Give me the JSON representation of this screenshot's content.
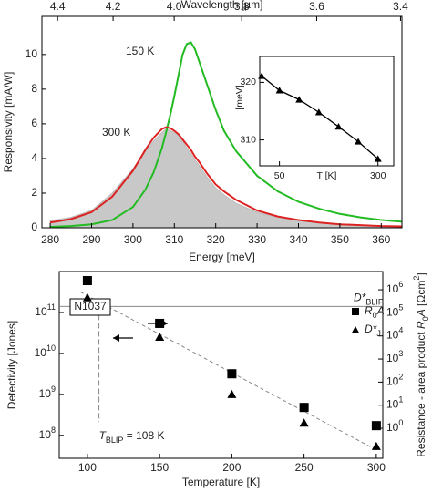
{
  "chart_data": [
    {
      "type": "line",
      "xlabel": "Energy [meV]",
      "ylabel": "Responsivity [mA/W]",
      "x2label": "Wavelength [µm]",
      "x": [
        280,
        285,
        290,
        295,
        300,
        303,
        305,
        307,
        308,
        309,
        310,
        311,
        312,
        313,
        314,
        315,
        316,
        318,
        320,
        322,
        325,
        330,
        335,
        340,
        345,
        350,
        355,
        360,
        365
      ],
      "series": [
        {
          "color": "#c8c8c8",
          "fill": true,
          "values": [
            0.4,
            0.6,
            1.0,
            2.0,
            3.4,
            4.4,
            5.0,
            5.5,
            5.7,
            5.6,
            5.5,
            5.3,
            5.0,
            4.6,
            4.3,
            3.9,
            3.6,
            2.9,
            2.3,
            1.9,
            1.4,
            0.9,
            0.6,
            0.4,
            0.3,
            0.2,
            0.15,
            0.1,
            0.1
          ]
        },
        {
          "name": "150 K",
          "color": "#22bb22",
          "values": [
            0.05,
            0.1,
            0.2,
            0.45,
            1.2,
            2.2,
            3.2,
            4.6,
            5.5,
            6.5,
            7.6,
            8.8,
            10.0,
            10.6,
            10.7,
            10.3,
            9.6,
            8.2,
            6.8,
            5.6,
            4.4,
            3.0,
            2.1,
            1.5,
            1.1,
            0.8,
            0.6,
            0.45,
            0.35
          ]
        },
        {
          "name": "300 K",
          "color": "#dd2222",
          "values": [
            0.3,
            0.5,
            0.9,
            1.8,
            3.3,
            4.5,
            5.2,
            5.7,
            5.8,
            5.75,
            5.6,
            5.4,
            5.1,
            4.8,
            4.5,
            4.1,
            3.8,
            3.1,
            2.5,
            2.1,
            1.6,
            1.0,
            0.65,
            0.45,
            0.3,
            0.2,
            0.15,
            0.1,
            0.08
          ]
        }
      ],
      "xlim": [
        278,
        365
      ],
      "xticks": [
        280,
        290,
        300,
        310,
        320,
        330,
        340,
        350,
        360
      ],
      "ylim": [
        0,
        12.2
      ],
      "yticks": [
        0,
        2,
        4,
        6,
        8,
        10
      ],
      "x2ticks": [
        4.4,
        4.2,
        {
          "value": 4,
          "label": "4.0"
        },
        3.8,
        3.6,
        3.4
      ]
    },
    {
      "type": "scatter",
      "xlabel": "T [K]",
      "ylabel": "[meV]",
      "marker": "triangle",
      "connect": true,
      "color": "#000000",
      "x": [
        5,
        50,
        100,
        150,
        200,
        250,
        300
      ],
      "values": [
        321.1,
        318.6,
        317.0,
        314.8,
        312.3,
        309.7,
        306.7
      ],
      "xlim": [
        0,
        340
      ],
      "xticks": [
        50,
        300
      ],
      "ylim": [
        305.5,
        324.5
      ],
      "yticks": [
        310,
        320
      ]
    },
    {
      "type": "scatter",
      "xlabel": "Temperature [K]",
      "ylabel": "Detectivity [Jones]",
      "y2label": {
        "text": "Resistance - area product ",
        "italic": "R",
        "sub": "0",
        "italic2": "A",
        "unit": " [Ωcm",
        "sup": "2",
        "end": "]"
      },
      "ylog": true,
      "xlim": [
        80.5,
        304.5
      ],
      "xticks": [
        100,
        150,
        200,
        250,
        300
      ],
      "ylim": [
        27500000,
        1000000000000
      ],
      "yticks": [
        {
          "value": 100000000,
          "label": "10",
          "superscript": "8"
        },
        {
          "value": 1000000000,
          "label": "10",
          "superscript": "9"
        },
        {
          "value": 10000000000,
          "label": "10",
          "superscript": "10"
        },
        {
          "value": 100000000000,
          "label": "10",
          "superscript": "11"
        }
      ],
      "y2lim": [
        0.05,
        6200000
      ],
      "y2ticks": [
        {
          "value": 1,
          "label": "10",
          "superscript": "0"
        },
        {
          "value": 10,
          "label": "10",
          "superscript": "1"
        },
        {
          "value": 100,
          "label": "10",
          "superscript": "2"
        },
        {
          "value": 1000,
          "label": "10",
          "superscript": "3"
        },
        {
          "value": 10000,
          "label": "10",
          "superscript": "4"
        },
        {
          "value": 100000,
          "label": "10",
          "superscript": "5"
        },
        {
          "value": 1000000,
          "label": "10",
          "superscript": "6"
        }
      ],
      "series": [
        {
          "name": {
            "text": "R",
            "sub": "0",
            "after": "A"
          },
          "marker": "square",
          "axis": "y2",
          "color": "#000000",
          "x": [
            100,
            150,
            200,
            250,
            300
          ],
          "values": [
            2500000,
            35000,
            230,
            8,
            1.3
          ]
        },
        {
          "name": {
            "text": "D*",
            "sub": "J"
          },
          "marker": "triangle",
          "color": "#000000",
          "x": [
            100,
            150,
            200,
            250,
            300
          ],
          "values": [
            230000000000,
            25000000000,
            1000000000,
            200000000,
            54000000
          ]
        }
      ],
      "fit": {
        "x": [
          95,
          300
        ],
        "values": [
          320000000000,
          44000000
        ]
      },
      "dblip": {
        "value": 140000000000,
        "text": "D*",
        "sub": "BLIP"
      },
      "tblip": {
        "value": 108,
        "text": "T",
        "sub": "BLIP",
        "after": " = 108 K"
      },
      "sample": "N1037"
    }
  ]
}
